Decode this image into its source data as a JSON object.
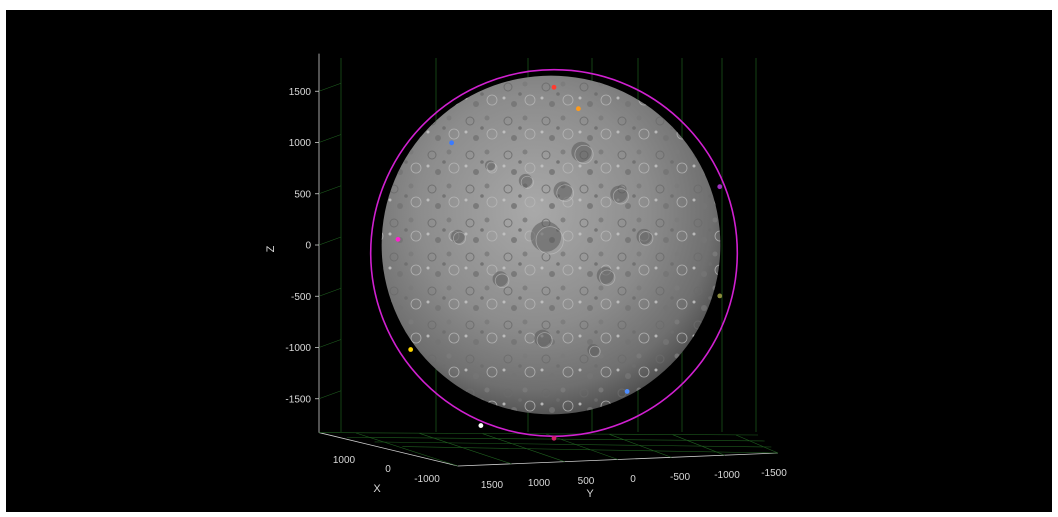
{
  "chart_data": {
    "type": "scatter",
    "title": "",
    "xlabel": "X",
    "ylabel": "Y",
    "zlabel": "Z",
    "axis_style": "3d",
    "background": "#000000",
    "grid": true,
    "grid_color": "#1f5f1f",
    "z_ticks": [
      "1500",
      "1000",
      "500",
      "0",
      "-500",
      "-1000",
      "-1500"
    ],
    "x_ticks": [
      "1000",
      "0",
      "-1000"
    ],
    "y_ticks": [
      "1500",
      "1000",
      "500",
      "0",
      "-500",
      "-1000",
      "-1500"
    ],
    "sphere": {
      "radius": 1737,
      "texture": "lunar surface (gray, cratered)"
    },
    "orbit": {
      "color": "#d020d0",
      "radius_approx": 1880
    },
    "points": [
      {
        "x": 0,
        "y": 0,
        "z": 1700,
        "color": "#ff3b30"
      },
      {
        "x": 0,
        "y": -250,
        "z": 1480,
        "color": "#ff9a1a"
      },
      {
        "x": 0,
        "y": 1050,
        "z": 1130,
        "color": "#3b7bff"
      },
      {
        "x": 0,
        "y": -1700,
        "z": 680,
        "color": "#a030c0"
      },
      {
        "x": 0,
        "y": 1600,
        "z": 140,
        "color": "#ff20d0"
      },
      {
        "x": 0,
        "y": -1700,
        "z": -440,
        "color": "#8a8a3a"
      },
      {
        "x": 0,
        "y": 1470,
        "z": -990,
        "color": "#ffd800"
      },
      {
        "x": 0,
        "y": -750,
        "z": -1420,
        "color": "#4d8dff"
      },
      {
        "x": 0,
        "y": 750,
        "z": -1770,
        "color": "#ffffff"
      },
      {
        "x": 0,
        "y": 0,
        "z": -1900,
        "color": "#d0206a"
      }
    ]
  }
}
